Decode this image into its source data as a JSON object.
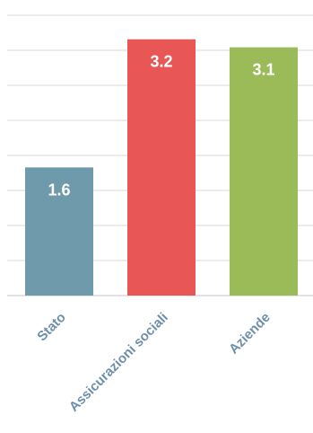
{
  "chart_data": {
    "type": "bar",
    "categories": [
      "Stato",
      "Assicurazioni sociali",
      "Aziende"
    ],
    "values": [
      1.6,
      3.2,
      3.1
    ],
    "value_labels": [
      "1.6",
      "3.2",
      "3.1"
    ],
    "colors": [
      "#6f9aab",
      "#e85756",
      "#9bbb59"
    ],
    "ylim": [
      0,
      3.5
    ],
    "grid": true,
    "gridline_count": 8,
    "gridline_color": "#d9d9d9",
    "label_color": "#6e8faa"
  }
}
